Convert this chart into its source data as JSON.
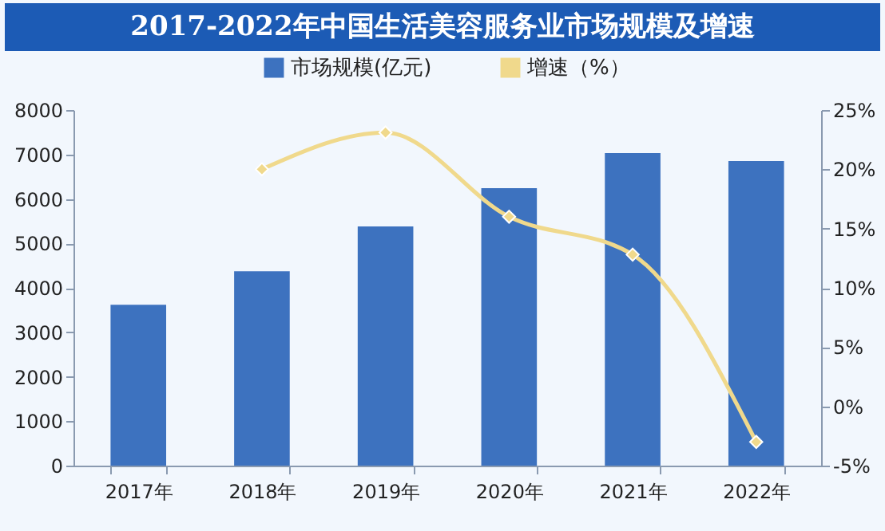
{
  "chart_data": {
    "type": "bar",
    "title": "2017-2022年中国生活美容服务业市场规模及增速",
    "categories": [
      "2017年",
      "2018年",
      "2019年",
      "2020年",
      "2021年",
      "2022年"
    ],
    "series": [
      {
        "name": "市场规模(亿元)",
        "color": "#3d72bf",
        "values": [
          3620,
          4370,
          5380,
          6240,
          7030,
          6850
        ]
      },
      {
        "name": "增速（%）",
        "type": "line",
        "axis": "y2",
        "color": "#f0d98c",
        "marker": "diamond",
        "values": [
          null,
          20.0,
          23.1,
          16.0,
          12.8,
          -3.0
        ]
      }
    ],
    "ylim": [
      0,
      8000
    ],
    "yticks": [
      0,
      1000,
      2000,
      3000,
      4000,
      5000,
      6000,
      7000,
      8000
    ],
    "y2lim": [
      -5,
      25
    ],
    "y2ticks": [
      {
        "value": -5,
        "label": "-5%"
      },
      {
        "value": 0,
        "label": "0%"
      },
      {
        "value": 5,
        "label": "5%"
      },
      {
        "value": 10,
        "label": "10%"
      },
      {
        "value": 15,
        "label": "15%"
      },
      {
        "value": 20,
        "label": "20%"
      },
      {
        "value": 25,
        "label": "25%"
      }
    ],
    "legend": "top",
    "grid": false
  }
}
